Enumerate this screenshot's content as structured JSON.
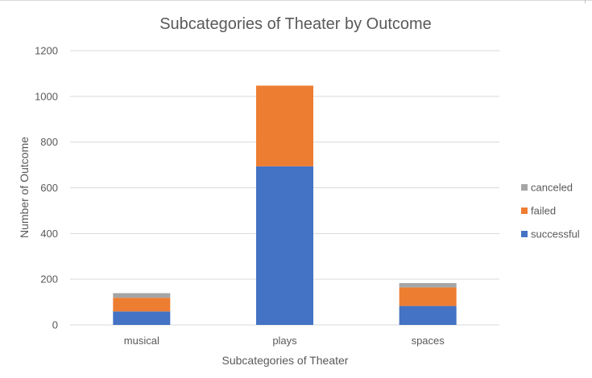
{
  "chart_data": {
    "type": "bar",
    "stacked": true,
    "title": "Subcategories of Theater by Outcome",
    "xlabel": "Subcategories of Theater",
    "ylabel": "Number of Outcome",
    "categories": [
      "musical",
      "plays",
      "spaces"
    ],
    "series": [
      {
        "name": "successful",
        "color": "#4472c4",
        "values": [
          59,
          694,
          83
        ]
      },
      {
        "name": "failed",
        "color": "#ed7d31",
        "values": [
          60,
          353,
          81
        ]
      },
      {
        "name": "canceled",
        "color": "#a5a5a5",
        "values": [
          20,
          0,
          19
        ]
      }
    ],
    "ylim": [
      0,
      1200
    ],
    "yticks": [
      0,
      200,
      400,
      600,
      800,
      1000,
      1200
    ],
    "grid": true,
    "legend": "right"
  }
}
